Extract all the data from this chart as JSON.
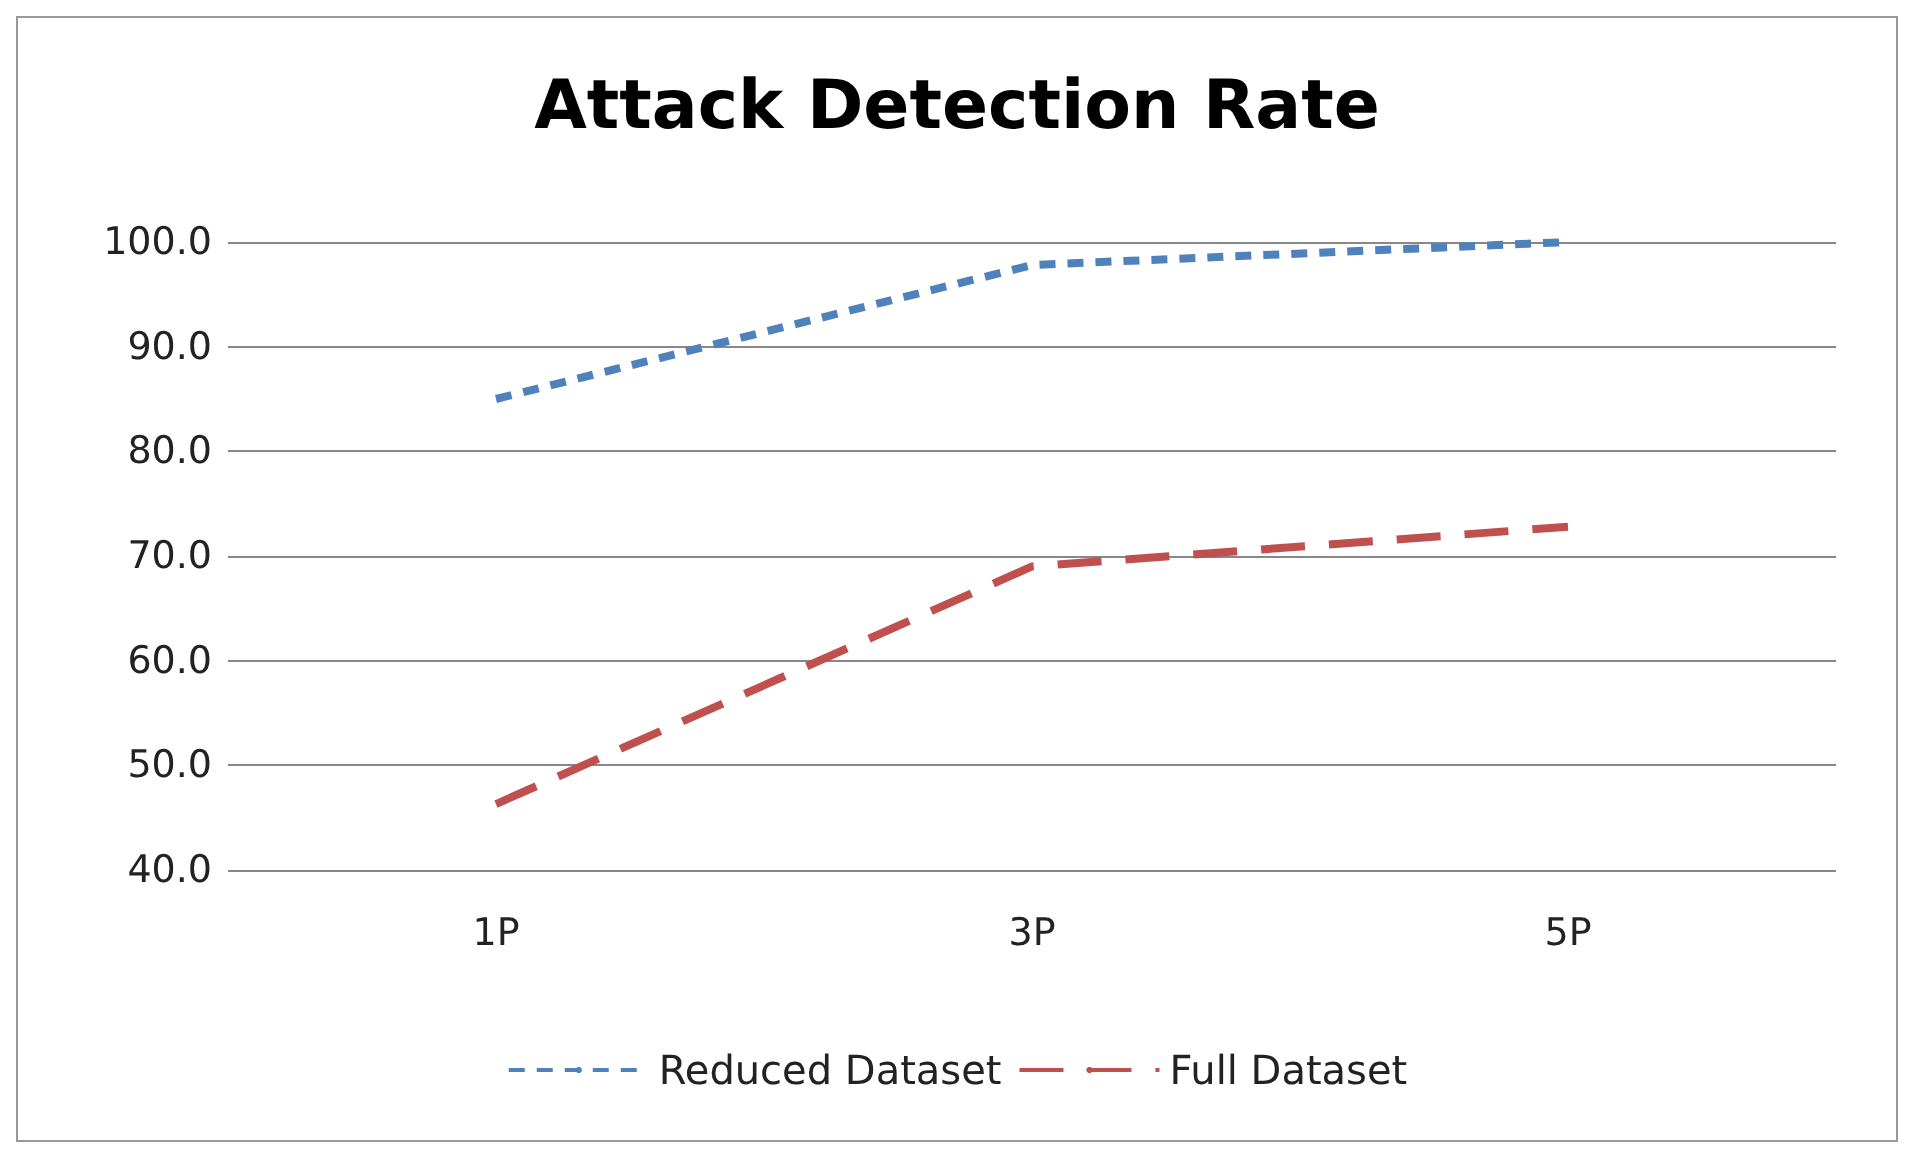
{
  "chart_data": {
    "type": "line",
    "title": "Attack Detection Rate",
    "categories": [
      "1P",
      "3P",
      "5P"
    ],
    "series": [
      {
        "name": "Reduced Dataset",
        "color": "#4f81bd",
        "line_style": "dotted",
        "values": [
          85.0,
          97.8,
          100.0
        ]
      },
      {
        "name": "Full Dataset",
        "color": "#c0504d",
        "line_style": "dashed",
        "values": [
          46.3,
          69.0,
          72.8
        ]
      }
    ],
    "ylim": [
      40,
      100
    ],
    "yticks": [
      {
        "value": 40,
        "label": "40.0"
      },
      {
        "value": 50,
        "label": "50.0"
      },
      {
        "value": 60,
        "label": "60.0"
      },
      {
        "value": 70,
        "label": "70.0"
      },
      {
        "value": 80,
        "label": "80.0"
      },
      {
        "value": 90,
        "label": "90.0"
      },
      {
        "value": 100,
        "label": "100.0"
      }
    ],
    "grid": "y",
    "legend": "bottom",
    "marker": "none"
  }
}
